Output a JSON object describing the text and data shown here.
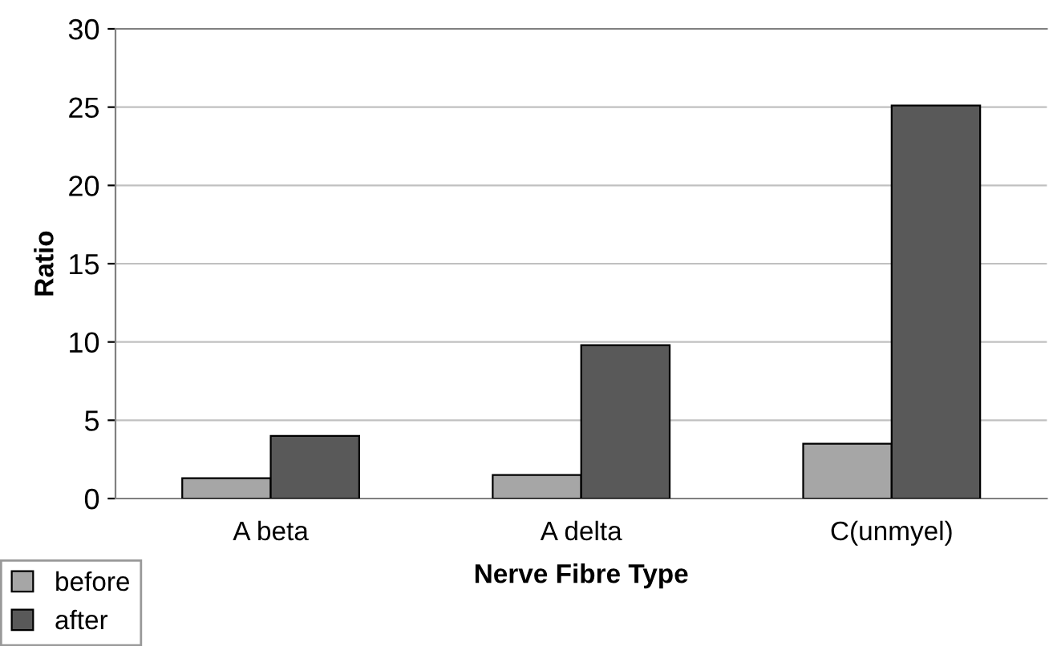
{
  "chart_data": {
    "type": "bar",
    "xlabel": "Nerve Fibre Type",
    "ylabel": "Ratio",
    "categories": [
      "A beta",
      "A delta",
      "C(unmyel)"
    ],
    "series": [
      {
        "name": "before",
        "color": "#a6a6a6",
        "values": [
          1.3,
          1.5,
          3.5
        ]
      },
      {
        "name": "after",
        "color": "#595959",
        "values": [
          4.0,
          9.8,
          25.1
        ]
      }
    ],
    "ylim": [
      0,
      30
    ],
    "yticks": [
      0,
      5,
      10,
      15,
      20,
      25,
      30
    ],
    "grid": "y",
    "legend": "bottom left"
  }
}
